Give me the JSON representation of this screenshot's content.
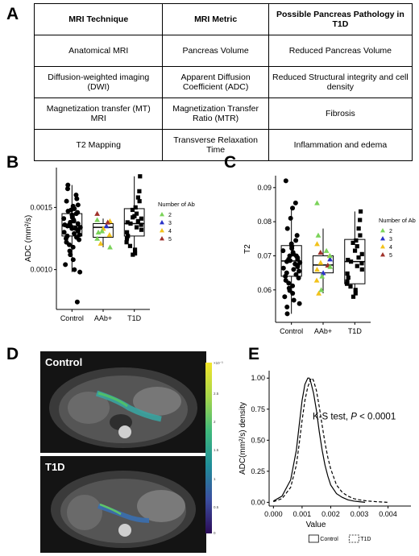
{
  "panels": {
    "A": "A",
    "B": "B",
    "C": "C",
    "D": "D",
    "E": "E"
  },
  "table": {
    "headers": [
      "MRI Technique",
      "MRI Metric",
      "Possible Pancreas Pathology in T1D"
    ],
    "rows": [
      [
        "Anatomical MRI",
        "Pancreas Volume",
        "Reduced Pancreas Volume"
      ],
      [
        "Diffusion-weighted imaging (DWI)",
        "Apparent Diffusion Coefficient (ADC)",
        "Reduced Structural integrity and cell density"
      ],
      [
        "Magnetization transfer (MT) MRI",
        "Magnetization Transfer Ratio (MTR)",
        "Fibrosis"
      ],
      [
        "T2 Mapping",
        "Transverse Relaxation Time",
        "Inflammation and edema"
      ]
    ]
  },
  "legend_ab": {
    "title": "Number of Ab",
    "items": [
      {
        "label": "2",
        "color": "#7bd35a"
      },
      {
        "label": "3",
        "color": "#2a33c8"
      },
      {
        "label": "4",
        "color": "#f2c21b"
      },
      {
        "label": "5",
        "color": "#a0322b"
      }
    ]
  },
  "chart_data": [
    {
      "id": "B",
      "type": "scatter",
      "subtype": "boxplot-with-jitter",
      "ylabel": "ADC (mm²/s)",
      "categories": [
        "Control",
        "AAb+",
        "T1D"
      ],
      "ylim": [
        0.00068,
        0.00182
      ],
      "yticks": [
        0.001,
        0.0015
      ],
      "yticklabels": [
        "0.0010",
        "0.0015"
      ],
      "boxes": [
        {
          "q1": 0.00127,
          "median": 0.00135,
          "q3": 0.00145,
          "lo": 0.00098,
          "hi": 0.00168
        },
        {
          "q1": 0.00126,
          "median": 0.00134,
          "q3": 0.00137,
          "lo": 0.00118,
          "hi": 0.00141
        },
        {
          "q1": 0.00127,
          "median": 0.00137,
          "q3": 0.00149,
          "lo": 0.00112,
          "hi": 0.00175
        }
      ],
      "points": [
        [
          0.00155,
          0.0016,
          0.00151,
          0.00148,
          0.00147,
          0.00146,
          0.00145,
          0.00144,
          0.00143,
          0.00142,
          0.00141,
          0.0014,
          0.00139,
          0.00138,
          0.00137,
          0.00136,
          0.00135,
          0.00135,
          0.00134,
          0.00133,
          0.00132,
          0.00131,
          0.0013,
          0.00129,
          0.00128,
          0.00127,
          0.00126,
          0.00125,
          0.00124,
          0.00122,
          0.0012,
          0.00118,
          0.00115,
          0.00112,
          0.00108,
          0.00104,
          0.001,
          0.00098,
          0.00165,
          0.00168,
          0.00157,
          0.00152,
          0.00149,
          0.00136,
          0.00133,
          0.00074
        ],
        [],
        [
          0.00175,
          0.00163,
          0.00158,
          0.00155,
          0.0015,
          0.00148,
          0.00145,
          0.00143,
          0.00141,
          0.00139,
          0.00138,
          0.00137,
          0.00136,
          0.00134,
          0.00132,
          0.0013,
          0.00127,
          0.00125,
          0.00122,
          0.00119,
          0.00116,
          0.00113,
          0.00112,
          0.00142
        ]
      ],
      "colored_points": [
        {
          "ab": "2",
          "v": 0.0014
        },
        {
          "ab": "2",
          "v": 0.0013
        },
        {
          "ab": "2",
          "v": 0.00125
        },
        {
          "ab": "3",
          "v": 0.00135
        },
        {
          "ab": "4",
          "v": 0.00128
        },
        {
          "ab": "4",
          "v": 0.00139
        },
        {
          "ab": "4",
          "v": 0.00121
        },
        {
          "ab": "5",
          "v": 0.00138
        },
        {
          "ab": "2",
          "v": 0.00118
        },
        {
          "ab": "5",
          "v": 0.00145
        },
        {
          "ab": "4",
          "v": 0.00133
        },
        {
          "ab": "2",
          "v": 0.00131
        }
      ]
    },
    {
      "id": "C",
      "type": "scatter",
      "subtype": "boxplot-with-jitter",
      "ylabel": "T2",
      "categories": [
        "Control",
        "AAb+",
        "T1D"
      ],
      "ylim": [
        0.0505,
        0.0935
      ],
      "yticks": [
        0.06,
        0.07,
        0.08,
        0.09
      ],
      "yticklabels": [
        "0.06",
        "0.07",
        "0.08",
        "0.09"
      ],
      "boxes": [
        {
          "q1": 0.064,
          "median": 0.0685,
          "q3": 0.073,
          "lo": 0.053,
          "hi": 0.084
        },
        {
          "q1": 0.065,
          "median": 0.0673,
          "q3": 0.07,
          "lo": 0.059,
          "hi": 0.078
        },
        {
          "q1": 0.0618,
          "median": 0.0683,
          "q3": 0.0748,
          "lo": 0.058,
          "hi": 0.083
        }
      ],
      "points": [
        [
          0.092,
          0.0855,
          0.084,
          0.081,
          0.078,
          0.076,
          0.0745,
          0.0735,
          0.0728,
          0.0722,
          0.0715,
          0.071,
          0.0705,
          0.07,
          0.0695,
          0.069,
          0.0686,
          0.0683,
          0.068,
          0.0676,
          0.0672,
          0.0668,
          0.0664,
          0.066,
          0.0655,
          0.065,
          0.0645,
          0.064,
          0.0635,
          0.0628,
          0.062,
          0.0612,
          0.0605,
          0.0598,
          0.059,
          0.058,
          0.057,
          0.056,
          0.055,
          0.053,
          0.07,
          0.069
        ],
        [],
        [
          0.083,
          0.0805,
          0.078,
          0.076,
          0.0745,
          0.0738,
          0.0728,
          0.0715,
          0.0705,
          0.0695,
          0.0688,
          0.0683,
          0.0678,
          0.067,
          0.066,
          0.0648,
          0.0636,
          0.0625,
          0.0618,
          0.061,
          0.06,
          0.059,
          0.058
        ]
      ],
      "colored_points": [
        {
          "ab": "2",
          "v": 0.0855
        },
        {
          "ab": "2",
          "v": 0.076
        },
        {
          "ab": "4",
          "v": 0.0735
        },
        {
          "ab": "2",
          "v": 0.0715
        },
        {
          "ab": "4",
          "v": 0.07
        },
        {
          "ab": "3",
          "v": 0.069
        },
        {
          "ab": "4",
          "v": 0.068
        },
        {
          "ab": "5",
          "v": 0.0672
        },
        {
          "ab": "2",
          "v": 0.0668
        },
        {
          "ab": "4",
          "v": 0.066
        },
        {
          "ab": "3",
          "v": 0.065
        },
        {
          "ab": "2",
          "v": 0.064
        },
        {
          "ab": "4",
          "v": 0.0628
        },
        {
          "ab": "5",
          "v": 0.071
        },
        {
          "ab": "2",
          "v": 0.06
        },
        {
          "ab": "4",
          "v": 0.059
        },
        {
          "ab": "2",
          "v": 0.07
        }
      ]
    },
    {
      "id": "E",
      "type": "line",
      "ylabel": "ADC(mm²/s) density",
      "xlabel": "Value",
      "xlim": [
        -0.00015,
        0.0048
      ],
      "ylim": [
        -0.03,
        1.06
      ],
      "xticks": [
        0.0,
        0.001,
        0.002,
        0.003,
        0.004
      ],
      "xticklabels": [
        "0.000",
        "0.001",
        "0.002",
        "0.003",
        "0.004"
      ],
      "yticks": [
        0.0,
        0.25,
        0.5,
        0.75,
        1.0
      ],
      "yticklabels": [
        "0.00",
        "0.25",
        "0.50",
        "0.75",
        "1.00"
      ],
      "series": [
        {
          "name": "Control",
          "style": "solid",
          "x": [
            0.0,
            0.0003,
            0.0006,
            0.0008,
            0.0009,
            0.001,
            0.0011,
            0.0012,
            0.00125,
            0.0013,
            0.0014,
            0.0015,
            0.0016,
            0.0017,
            0.0018,
            0.0019,
            0.002,
            0.0022,
            0.0024,
            0.0026,
            0.0028,
            0.003,
            0.0032
          ],
          "y": [
            0.01,
            0.05,
            0.18,
            0.42,
            0.62,
            0.82,
            0.95,
            1.0,
            1.0,
            0.97,
            0.88,
            0.74,
            0.57,
            0.42,
            0.3,
            0.21,
            0.14,
            0.07,
            0.04,
            0.02,
            0.01,
            0.005,
            0.0
          ]
        },
        {
          "name": "T1D",
          "style": "dashed",
          "x": [
            0.0,
            0.0003,
            0.0006,
            0.0008,
            0.0009,
            0.001,
            0.0011,
            0.0012,
            0.0013,
            0.00135,
            0.0014,
            0.0015,
            0.0016,
            0.0017,
            0.0018,
            0.0019,
            0.002,
            0.0022,
            0.0024,
            0.0026,
            0.0028,
            0.003,
            0.0033,
            0.0036,
            0.004
          ],
          "y": [
            0.005,
            0.03,
            0.12,
            0.3,
            0.47,
            0.66,
            0.82,
            0.93,
            0.99,
            1.0,
            0.98,
            0.9,
            0.77,
            0.62,
            0.48,
            0.36,
            0.27,
            0.14,
            0.08,
            0.05,
            0.03,
            0.02,
            0.01,
            0.005,
            0.0
          ]
        }
      ],
      "annotation": {
        "text": "K-S test, ",
        "italic": "P",
        "rest": " < 0.0001"
      },
      "legend": [
        {
          "label": "Control",
          "style": "solid"
        },
        {
          "label": "T1D",
          "style": "dashed"
        }
      ]
    }
  ],
  "images": {
    "top_label": "Control",
    "bottom_label": "T1D",
    "colorbar_ticks": [
      "×10⁻³",
      "2.5",
      "2",
      "1.5",
      "1",
      "0.5",
      "0"
    ]
  }
}
